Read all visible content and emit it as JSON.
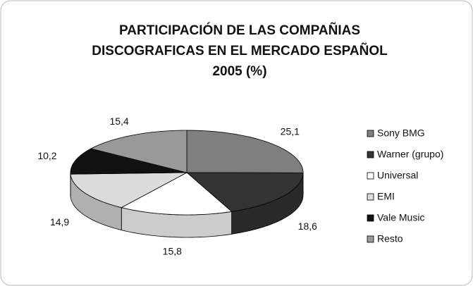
{
  "chart_data": {
    "type": "pie3d",
    "title": [
      "PARTICIPACIÓN DE LAS COMPAÑIAS",
      "DISCOGRAFICAS EN EL MERCADO ESPAÑOL",
      "2005 (%)"
    ],
    "categories": [
      "Sony BMG",
      "Warner (grupo)",
      "Universal",
      "EMI",
      "Vale Music",
      "Resto"
    ],
    "values": [
      25.1,
      18.6,
      15.8,
      14.9,
      10.2,
      15.4
    ],
    "value_labels": [
      "25,1",
      "18,6",
      "15,8",
      "14,9",
      "10,2",
      "15,4"
    ],
    "colors": [
      "#7f7f7f",
      "#333333",
      "#ffffff",
      "#dcdcdc",
      "#111111",
      "#999999"
    ],
    "legend": "right"
  }
}
